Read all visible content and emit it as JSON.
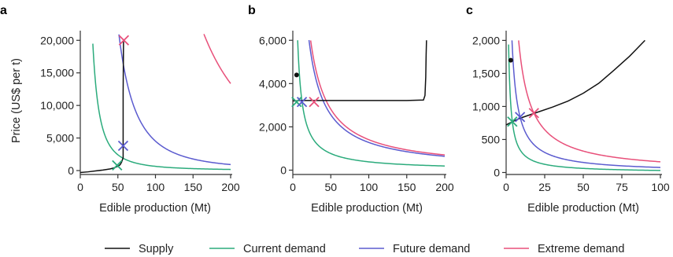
{
  "colors": {
    "supply": "#111111",
    "current": "#2bab7c",
    "future": "#5b5bcf",
    "extreme": "#e8507a",
    "axis": "#333333"
  },
  "legend": [
    {
      "key": "supply",
      "label": "Supply"
    },
    {
      "key": "current",
      "label": "Current demand"
    },
    {
      "key": "future",
      "label": "Future demand"
    },
    {
      "key": "extreme",
      "label": "Extreme demand"
    }
  ],
  "chart_data": [
    {
      "panel": "a",
      "type": "line",
      "xlabel": "Edible production (Mt)",
      "ylabel": "Price (US$ per t)",
      "xlim": [
        0,
        200
      ],
      "ylim": [
        -600,
        21000
      ],
      "xticks": [
        0,
        50,
        100,
        150,
        200
      ],
      "xtick_labels": [
        "0",
        "50",
        "100",
        "150",
        "200"
      ],
      "yticks": [
        0,
        5000,
        10000,
        15000,
        20000
      ],
      "ytick_labels": [
        "0",
        "5,000",
        "10,000",
        "15,000",
        "20,000"
      ],
      "supply": {
        "x": [
          0,
          10,
          20,
          30,
          40,
          45,
          50,
          53,
          55,
          57,
          57,
          57,
          57.5
        ],
        "y": [
          -300,
          -200,
          -60,
          80,
          260,
          420,
          650,
          900,
          1300,
          2000,
          5000,
          12000,
          20000
        ]
      },
      "demand": [
        {
          "key": "current",
          "a": 4100000,
          "b": 1.9,
          "xstart": 16.7,
          "xend": 200
        },
        {
          "key": "future",
          "a": 180000000,
          "b": 2.3,
          "xstart": 33,
          "xend": 200
        },
        {
          "key": "extreme",
          "a": 2620000000,
          "b": 2.3,
          "xstart": 60,
          "xend": 200
        }
      ],
      "dots": [],
      "equilibria": [
        {
          "key": "current",
          "x": 49,
          "y": 800
        },
        {
          "key": "future",
          "x": 57,
          "y": 3800
        },
        {
          "key": "extreme",
          "x": 58,
          "y": 20000
        }
      ]
    },
    {
      "panel": "b",
      "type": "line",
      "xlabel": "Edible production (Mt)",
      "ylabel": "",
      "xlim": [
        0,
        200
      ],
      "ylim": [
        -200,
        6300
      ],
      "xticks": [
        0,
        50,
        100,
        150,
        200
      ],
      "xtick_labels": [
        "0",
        "50",
        "100",
        "150",
        "200"
      ],
      "yticks": [
        0,
        2000,
        4000,
        6000
      ],
      "ytick_labels": [
        "0",
        "2,000",
        "4,000",
        "6,000"
      ],
      "supply": {
        "x": [
          0,
          5,
          8,
          10,
          50,
          100,
          150,
          172,
          174,
          175,
          175.5,
          176
        ],
        "y": [
          3200,
          3200,
          3220,
          3220,
          3220,
          3220,
          3220,
          3240,
          3450,
          4300,
          5300,
          6000
        ]
      },
      "demand": [
        {
          "key": "current",
          "a": 38400,
          "b": 1.0,
          "xstart": 6.4,
          "xend": 200
        },
        {
          "key": "future",
          "a": 128000,
          "b": 1.0,
          "xstart": 21.3,
          "xend": 200
        },
        {
          "key": "extreme",
          "a": 140800,
          "b": 1.0,
          "xstart": 23.5,
          "xend": 200
        }
      ],
      "dots": [
        {
          "x": 5,
          "y": 4400
        }
      ],
      "equilibria": [
        {
          "key": "current",
          "x": 5,
          "y": 3150
        },
        {
          "key": "future",
          "x": 12,
          "y": 3150
        },
        {
          "key": "extreme",
          "x": 28,
          "y": 3150
        }
      ]
    },
    {
      "panel": "c",
      "type": "line",
      "xlabel": "Edible production (Mt)",
      "ylabel": "",
      "xlim": [
        0,
        100
      ],
      "ylim": [
        -30,
        2100
      ],
      "xticks": [
        0,
        25,
        50,
        75,
        100
      ],
      "xtick_labels": [
        "0",
        "25",
        "50",
        "75",
        "100"
      ],
      "yticks": [
        0,
        500,
        1000,
        1500,
        2000
      ],
      "ytick_labels": [
        "0",
        "500",
        "1,000",
        "1,500",
        "2,000"
      ],
      "supply": {
        "x": [
          0,
          5,
          10,
          15,
          20,
          30,
          40,
          50,
          60,
          70,
          80,
          85,
          90
        ],
        "y": [
          720,
          780,
          830,
          870,
          910,
          990,
          1080,
          1200,
          1350,
          1550,
          1760,
          1880,
          2000
        ]
      },
      "demand": [
        {
          "key": "current",
          "a": 3100,
          "b": 1.0,
          "xstart": 1.6,
          "xend": 100
        },
        {
          "key": "future",
          "a": 7600,
          "b": 1.0,
          "xstart": 3.8,
          "xend": 100
        },
        {
          "key": "extreme",
          "a": 16200,
          "b": 1.0,
          "xstart": 8.1,
          "xend": 100
        }
      ],
      "dots": [
        {
          "x": 3,
          "y": 1700
        }
      ],
      "equilibria": [
        {
          "key": "current",
          "x": 4,
          "y": 770
        },
        {
          "key": "future",
          "x": 9,
          "y": 840
        },
        {
          "key": "extreme",
          "x": 18,
          "y": 900
        }
      ]
    }
  ]
}
